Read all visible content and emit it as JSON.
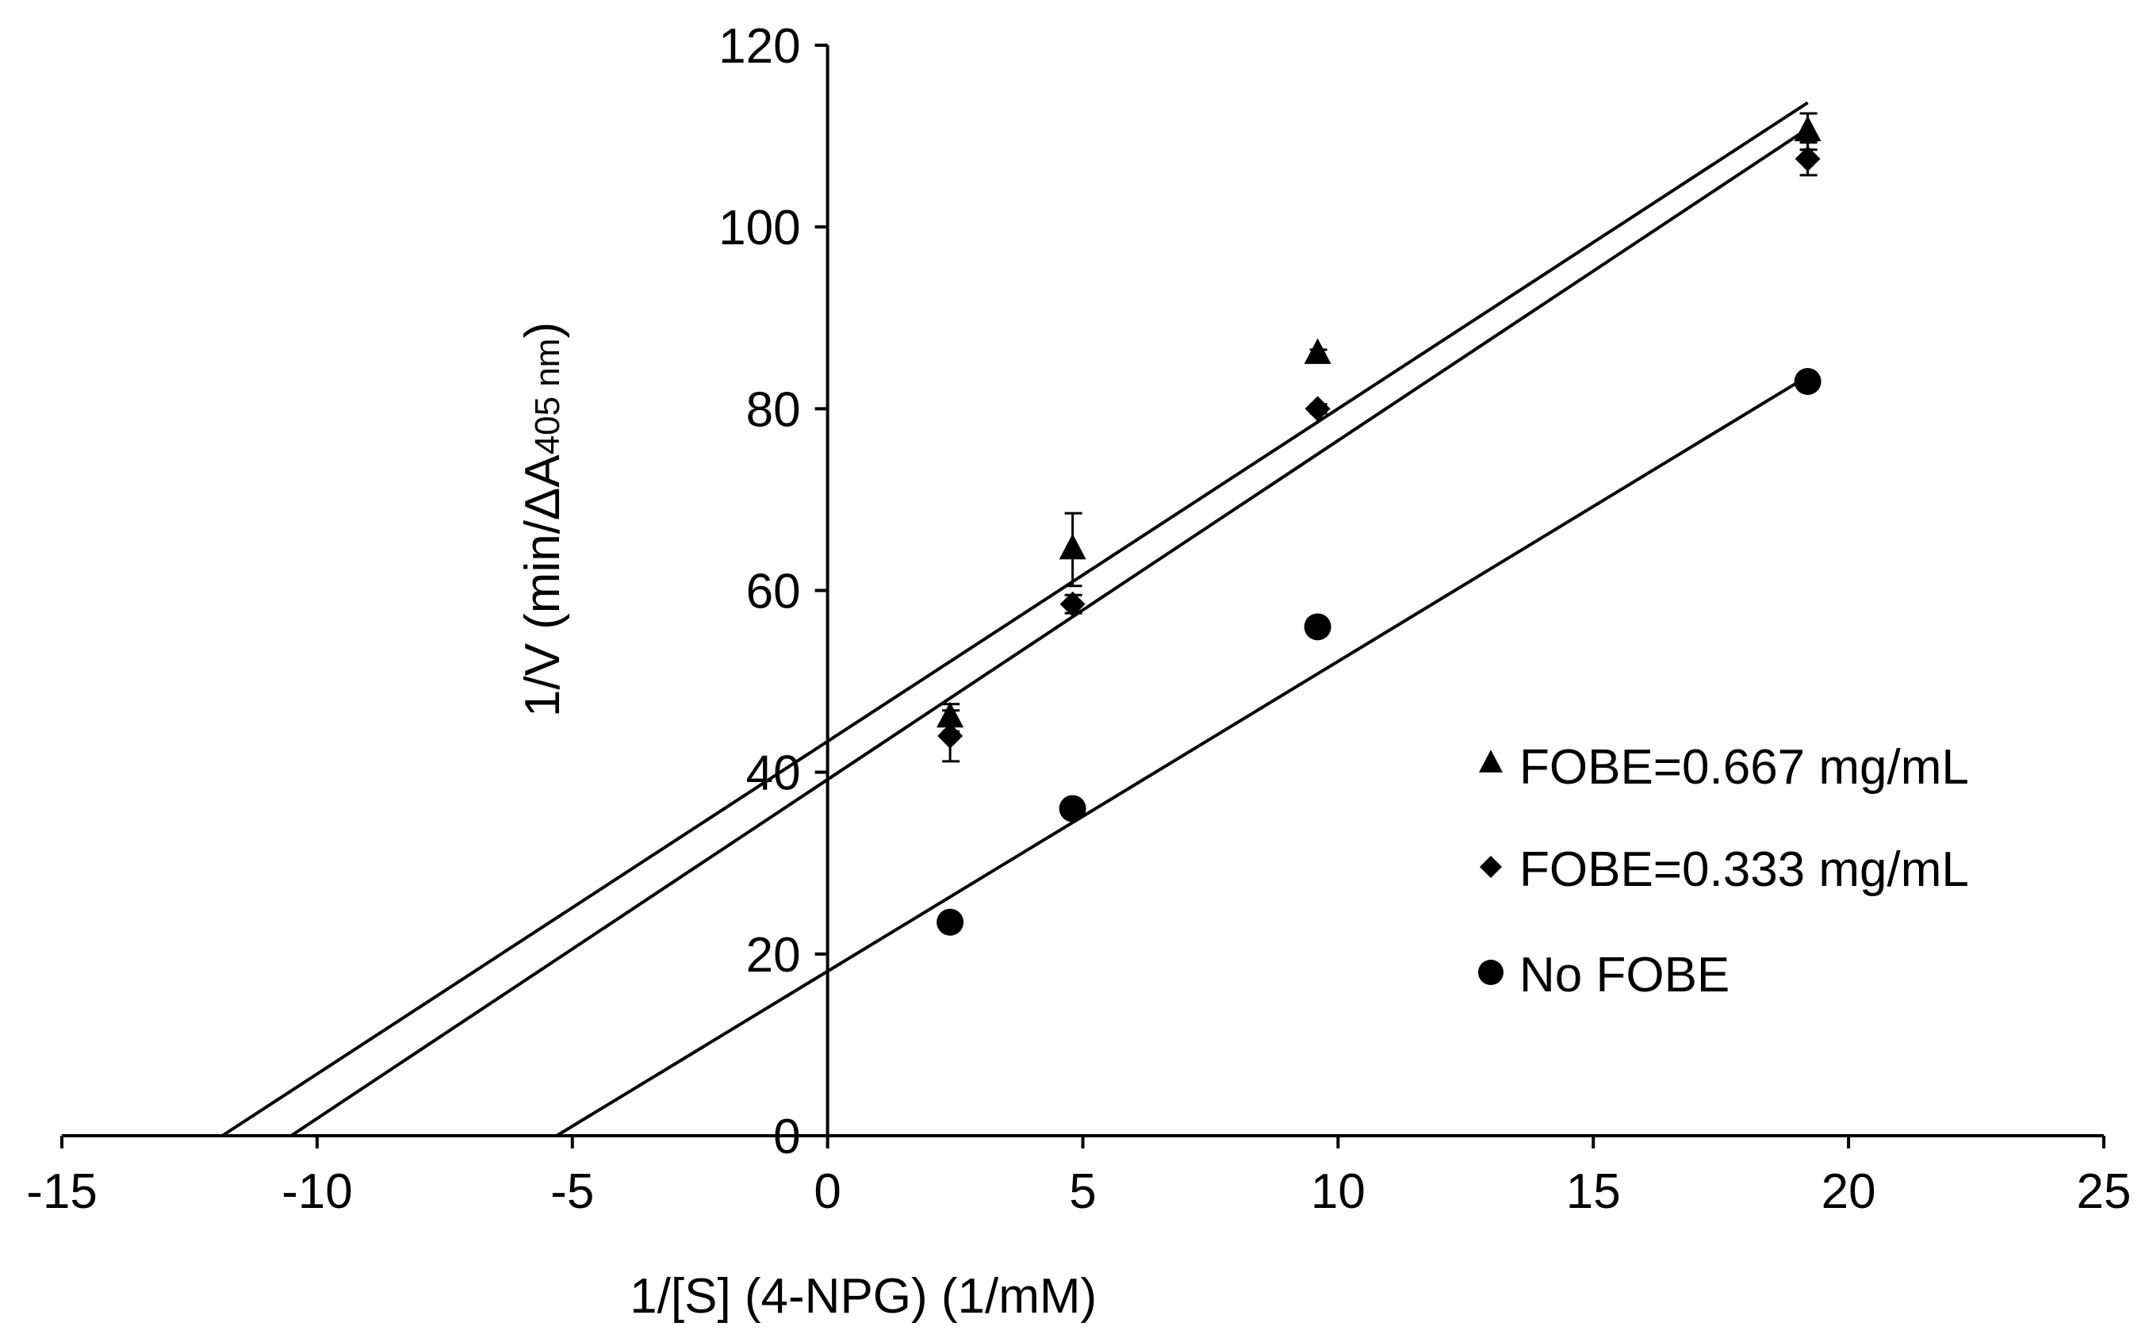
{
  "chart_data": {
    "type": "line",
    "title": "",
    "xlabel": "1/[S] (4-NPG) (1/mM)",
    "ylabel": {
      "prefix": "1/V (min/ΔA",
      "subscript": "405 nm",
      "suffix": ")"
    },
    "xlim": [
      -15,
      25
    ],
    "ylim": [
      0,
      120
    ],
    "xticks": [
      -15,
      -10,
      -5,
      0,
      5,
      10,
      15,
      20,
      25
    ],
    "yticks": [
      0,
      20,
      40,
      60,
      80,
      100,
      120
    ],
    "grid": false,
    "legend_position": "right",
    "series": [
      {
        "name": "FOBE=0.667 mg/mL",
        "marker": "triangle",
        "x": [
          2.4,
          4.8,
          9.6,
          19.2
        ],
        "y": [
          46,
          64.5,
          86,
          110.5
        ],
        "error": [
          1.5,
          4,
          0.5,
          2
        ],
        "fit": {
          "slope": 3.66,
          "intercept": 43.4
        }
      },
      {
        "name": "FOBE=0.333 mg/mL",
        "marker": "diamond",
        "x": [
          2.4,
          4.8,
          9.6,
          19.2
        ],
        "y": [
          44,
          58.5,
          80,
          107.5
        ],
        "error": [
          2.8,
          1,
          0.5,
          1.8
        ],
        "fit": {
          "slope": 3.73,
          "intercept": 39.2
        }
      },
      {
        "name": "No FOBE",
        "marker": "circle",
        "x": [
          2.4,
          4.8,
          9.6,
          19.2
        ],
        "y": [
          23.5,
          36,
          56,
          83
        ],
        "error": [
          0.5,
          0.5,
          0.5,
          0.5
        ],
        "fit": {
          "slope": 3.41,
          "intercept": 18.1
        }
      }
    ],
    "colors": {
      "ink": "#000000",
      "background": "#ffffff"
    }
  }
}
